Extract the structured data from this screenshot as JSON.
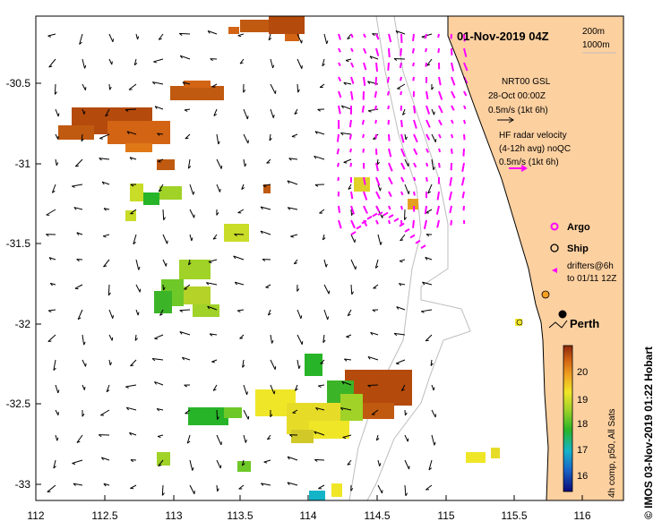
{
  "title": "01-Nov-2019 04Z",
  "depth_labels": [
    "200m",
    "1000m"
  ],
  "model_legend": {
    "lines": [
      "NRT00 GSL",
      "28-Oct 00:00Z",
      "0.5m/s (1kt 6h)"
    ]
  },
  "radar_legend": {
    "lines": [
      "HF radar velocity",
      "(4-12h avg) noQC",
      "0.5m/s (1kt 6h)"
    ]
  },
  "markers": {
    "argo": "Argo",
    "ship": "Ship",
    "drifters": [
      "drifters@6h",
      "to 01/11 12Z"
    ]
  },
  "city": "Perth",
  "x_ticks": [
    "112",
    "112.5",
    "113",
    "113.5",
    "114",
    "114.5",
    "115",
    "115.5",
    "116"
  ],
  "y_ticks": [
    "-30.5",
    "-31",
    "-31.5",
    "-32",
    "-32.5",
    "-33"
  ],
  "colorbar": {
    "ticks": [
      "20",
      "19",
      "18",
      "17",
      "16"
    ],
    "label": "4h comp, p50, All Sats"
  },
  "credit": "© IMOS 03-Nov-2019 01:22 Hobart",
  "colors": {
    "land": "#fdd0a0",
    "current_arrow": "#000000",
    "radar_arrow": "#ff00ff",
    "argo": "#ff00ff",
    "ship_marker": "#f5a020"
  }
}
